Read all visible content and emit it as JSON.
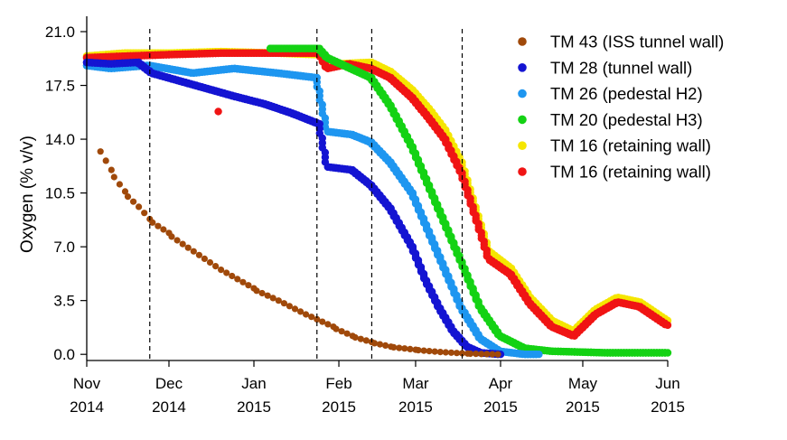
{
  "chart_data": {
    "type": "scatter",
    "ylabel": "Oxygen (% v/v)",
    "ylim": [
      -0.4,
      22.0
    ],
    "y_ticks": [
      "0.0",
      "3.5",
      "7.0",
      "10.5",
      "14.0",
      "17.5",
      "21.0"
    ],
    "y_tick_values": [
      0.0,
      3.5,
      7.0,
      10.5,
      14.0,
      17.5,
      21.0
    ],
    "xlim": [
      "2014-11-01",
      "2015-06-01"
    ],
    "x_ticks": [
      {
        "date": "2014-11-01",
        "month": "Nov",
        "year": "2014"
      },
      {
        "date": "2014-12-01",
        "month": "Dec",
        "year": "2014"
      },
      {
        "date": "2015-01-01",
        "month": "Jan",
        "year": "2015"
      },
      {
        "date": "2015-02-01",
        "month": "Feb",
        "year": "2015"
      },
      {
        "date": "2015-03-01",
        "month": "Mar",
        "year": "2015"
      },
      {
        "date": "2015-04-01",
        "month": "Apr",
        "year": "2015"
      },
      {
        "date": "2015-05-01",
        "month": "May",
        "year": "2015"
      },
      {
        "date": "2015-06-01",
        "month": "Jun",
        "year": "2015"
      }
    ],
    "vertical_lines": [
      "2014-11-24",
      "2015-01-24",
      "2015-02-13",
      "2015-03-18"
    ],
    "legend_position": "top-right",
    "series": [
      {
        "name": "TM 43 (ISS tunnel wall)",
        "color": "#a0490a",
        "points": [
          [
            "2014-11-06",
            13.2
          ],
          [
            "2014-11-10",
            12.0
          ],
          [
            "2014-11-15",
            10.6
          ],
          [
            "2014-11-20",
            9.6
          ],
          [
            "2014-11-24",
            8.8
          ],
          [
            "2014-12-01",
            7.9
          ],
          [
            "2014-12-10",
            6.7
          ],
          [
            "2014-12-20",
            5.5
          ],
          [
            "2015-01-01",
            4.3
          ],
          [
            "2015-01-10",
            3.5
          ],
          [
            "2015-01-20",
            2.6
          ],
          [
            "2015-01-30",
            1.8
          ],
          [
            "2015-02-06",
            1.2
          ],
          [
            "2015-02-13",
            0.8
          ],
          [
            "2015-02-20",
            0.5
          ],
          [
            "2015-03-01",
            0.3
          ],
          [
            "2015-03-10",
            0.15
          ],
          [
            "2015-03-20",
            0.05
          ],
          [
            "2015-03-31",
            0.0
          ]
        ]
      },
      {
        "name": "TM 28 (tunnel wall)",
        "color": "#1414d2",
        "points": [
          [
            "2014-11-01",
            19.0
          ],
          [
            "2014-11-10",
            18.9
          ],
          [
            "2014-11-20",
            19.0
          ],
          [
            "2014-11-25",
            18.3
          ],
          [
            "2014-12-05",
            17.8
          ],
          [
            "2014-12-15",
            17.3
          ],
          [
            "2014-12-25",
            16.8
          ],
          [
            "2015-01-05",
            16.3
          ],
          [
            "2015-01-15",
            15.7
          ],
          [
            "2015-01-25",
            15.0
          ],
          [
            "2015-01-28",
            12.2
          ],
          [
            "2015-02-06",
            12.0
          ],
          [
            "2015-02-13",
            11.0
          ],
          [
            "2015-02-20",
            9.5
          ],
          [
            "2015-02-28",
            7.0
          ],
          [
            "2015-03-05",
            4.8
          ],
          [
            "2015-03-10",
            3.0
          ],
          [
            "2015-03-15",
            1.5
          ],
          [
            "2015-03-20",
            0.5
          ],
          [
            "2015-03-25",
            0.1
          ],
          [
            "2015-04-01",
            0.0
          ]
        ]
      },
      {
        "name": "TM 26 (pedestal H2)",
        "color": "#1e96f0",
        "points": [
          [
            "2014-11-01",
            18.8
          ],
          [
            "2014-11-10",
            18.6
          ],
          [
            "2014-11-24",
            18.8
          ],
          [
            "2014-12-10",
            18.3
          ],
          [
            "2014-12-25",
            18.6
          ],
          [
            "2015-01-10",
            18.3
          ],
          [
            "2015-01-24",
            18.0
          ],
          [
            "2015-01-28",
            14.5
          ],
          [
            "2015-02-06",
            14.3
          ],
          [
            "2015-02-13",
            13.8
          ],
          [
            "2015-02-20",
            12.5
          ],
          [
            "2015-02-28",
            10.5
          ],
          [
            "2015-03-06",
            8.0
          ],
          [
            "2015-03-12",
            5.5
          ],
          [
            "2015-03-18",
            3.0
          ],
          [
            "2015-03-25",
            1.0
          ],
          [
            "2015-04-01",
            0.2
          ],
          [
            "2015-04-10",
            0.0
          ],
          [
            "2015-04-15",
            0.0
          ]
        ]
      },
      {
        "name": "TM 20 (pedestal H3)",
        "color": "#14d214",
        "points": [
          [
            "2015-01-07",
            19.9
          ],
          [
            "2015-01-15",
            19.9
          ],
          [
            "2015-01-25",
            19.9
          ],
          [
            "2015-01-28",
            19.3
          ],
          [
            "2015-02-13",
            18.0
          ],
          [
            "2015-02-20",
            16.2
          ],
          [
            "2015-02-28",
            13.5
          ],
          [
            "2015-03-06",
            11.0
          ],
          [
            "2015-03-12",
            8.5
          ],
          [
            "2015-03-18",
            6.0
          ],
          [
            "2015-03-25",
            3.0
          ],
          [
            "2015-04-01",
            1.2
          ],
          [
            "2015-04-10",
            0.4
          ],
          [
            "2015-04-20",
            0.2
          ],
          [
            "2015-05-10",
            0.1
          ],
          [
            "2015-06-01",
            0.1
          ]
        ]
      },
      {
        "name": "TM 16 (retaining wall)",
        "color": "#f5e600",
        "points": [
          [
            "2014-11-01",
            19.4
          ],
          [
            "2014-11-15",
            19.6
          ],
          [
            "2014-12-01",
            19.6
          ],
          [
            "2014-12-20",
            19.7
          ],
          [
            "2015-01-10",
            19.6
          ],
          [
            "2015-01-25",
            19.5
          ],
          [
            "2015-02-01",
            18.9
          ],
          [
            "2015-02-13",
            19.0
          ],
          [
            "2015-02-20",
            18.4
          ],
          [
            "2015-02-28",
            17.2
          ],
          [
            "2015-03-06",
            16.0
          ],
          [
            "2015-03-12",
            14.6
          ],
          [
            "2015-03-18",
            12.5
          ],
          [
            "2015-03-24",
            9.0
          ],
          [
            "2015-03-28",
            6.7
          ],
          [
            "2015-04-05",
            5.6
          ],
          [
            "2015-04-12",
            3.7
          ],
          [
            "2015-04-20",
            2.2
          ],
          [
            "2015-04-28",
            1.5
          ],
          [
            "2015-05-06",
            2.9
          ],
          [
            "2015-05-14",
            3.7
          ],
          [
            "2015-05-22",
            3.4
          ],
          [
            "2015-06-01",
            2.2
          ]
        ]
      },
      {
        "name": "TM 16 (retaining wall)",
        "color": "#f01414",
        "points": [
          [
            "2014-11-01",
            19.3
          ],
          [
            "2014-11-15",
            19.4
          ],
          [
            "2014-12-01",
            19.5
          ],
          [
            "2014-12-20",
            19.6
          ],
          [
            "2015-01-10",
            19.6
          ],
          [
            "2015-01-25",
            19.6
          ],
          [
            "2015-01-28",
            18.6
          ],
          [
            "2015-02-05",
            18.9
          ],
          [
            "2015-02-13",
            18.6
          ],
          [
            "2015-02-20",
            18.0
          ],
          [
            "2015-02-28",
            16.7
          ],
          [
            "2015-03-06",
            15.4
          ],
          [
            "2015-03-12",
            14.0
          ],
          [
            "2015-03-18",
            11.8
          ],
          [
            "2015-03-24",
            8.5
          ],
          [
            "2015-03-28",
            6.2
          ],
          [
            "2015-04-05",
            5.2
          ],
          [
            "2015-04-12",
            3.3
          ],
          [
            "2015-04-20",
            1.8
          ],
          [
            "2015-04-28",
            1.2
          ],
          [
            "2015-05-06",
            2.6
          ],
          [
            "2015-05-14",
            3.4
          ],
          [
            "2015-05-22",
            3.1
          ],
          [
            "2015-06-01",
            1.9
          ]
        ]
      }
    ],
    "outlier_points": [
      {
        "series_index": 5,
        "date": "2014-12-19",
        "value": 15.8
      }
    ]
  }
}
